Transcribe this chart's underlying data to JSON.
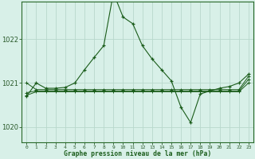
{
  "title": "Graphe pression niveau de la mer (hPa)",
  "background_color": "#d8f0e8",
  "grid_color": "#b8d8cc",
  "line_color": "#1a5c1a",
  "xlim": [
    -0.5,
    23.5
  ],
  "ylim": [
    1019.65,
    1022.85
  ],
  "yticks": [
    1020,
    1021,
    1022
  ],
  "xticks": [
    0,
    1,
    2,
    3,
    4,
    5,
    6,
    7,
    8,
    9,
    10,
    11,
    12,
    13,
    14,
    15,
    16,
    17,
    18,
    19,
    20,
    21,
    22,
    23
  ],
  "series_main": [
    1020.7,
    1021.0,
    1020.88,
    1020.88,
    1020.9,
    1021.0,
    1021.3,
    1021.58,
    1021.85,
    1023.05,
    1022.5,
    1022.35,
    1021.85,
    1021.55,
    1021.3,
    1021.05,
    1020.45,
    1020.1,
    1020.75,
    1020.82,
    1020.88,
    1020.92,
    1021.0,
    1021.2
  ],
  "series2": [
    1021.0,
    1020.85,
    1020.85,
    1020.85,
    1020.85,
    1020.85,
    1020.85,
    1020.85,
    1020.85,
    1020.85,
    1020.85,
    1020.85,
    1020.85,
    1020.85,
    1020.85,
    1020.85,
    1020.85,
    1020.85,
    1020.85,
    1020.85,
    1020.85,
    1020.85,
    1020.85,
    1021.15
  ],
  "series3": [
    1020.78,
    1020.82,
    1020.82,
    1020.82,
    1020.82,
    1020.82,
    1020.82,
    1020.82,
    1020.82,
    1020.82,
    1020.82,
    1020.82,
    1020.82,
    1020.82,
    1020.82,
    1020.82,
    1020.82,
    1020.82,
    1020.82,
    1020.82,
    1020.82,
    1020.82,
    1020.82,
    1021.08
  ],
  "series4": [
    1020.72,
    1020.8,
    1020.8,
    1020.8,
    1020.8,
    1020.8,
    1020.8,
    1020.8,
    1020.8,
    1020.8,
    1020.8,
    1020.8,
    1020.8,
    1020.8,
    1020.8,
    1020.8,
    1020.8,
    1020.8,
    1020.8,
    1020.8,
    1020.8,
    1020.8,
    1020.8,
    1021.0
  ],
  "ytick_fontsize": 6,
  "xtick_fontsize": 4.5,
  "xlabel_fontsize": 5.8
}
